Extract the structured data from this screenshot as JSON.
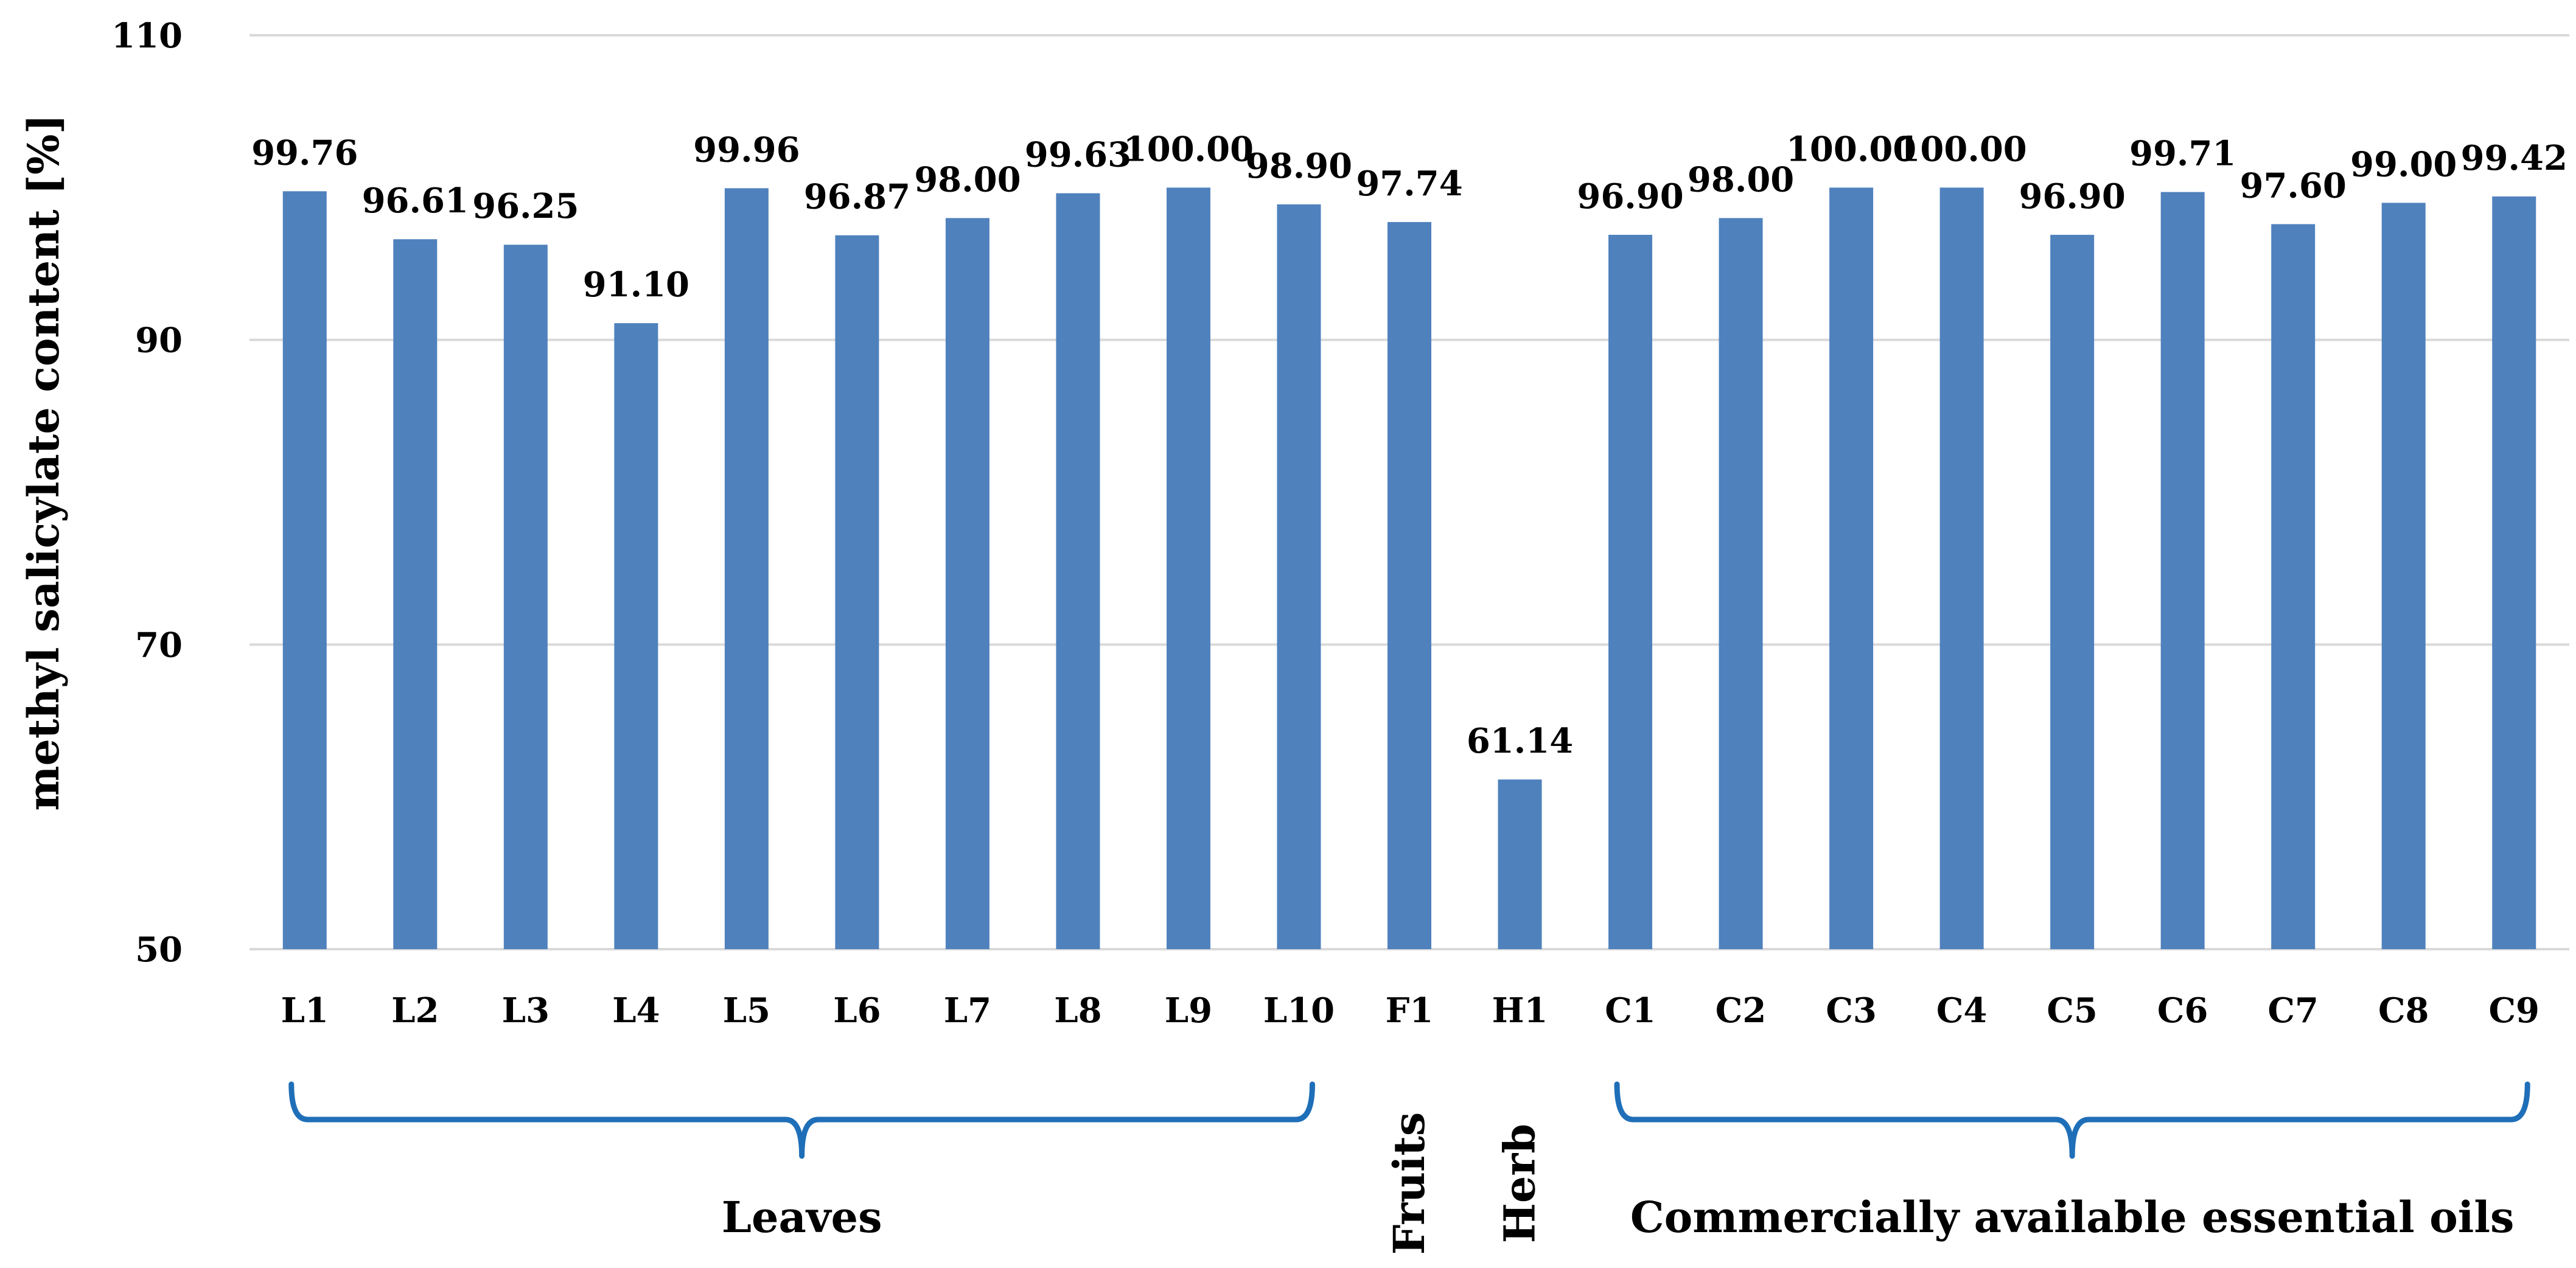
{
  "chart_data": {
    "type": "bar",
    "title": "",
    "xlabel": "",
    "ylabel": "methyl salicylate content [%]",
    "ylim": [
      50,
      110
    ],
    "yticks": [
      50,
      70,
      90,
      110
    ],
    "grid": true,
    "categories": [
      "L1",
      "L2",
      "L3",
      "L4",
      "L5",
      "L6",
      "L7",
      "L8",
      "L9",
      "L10",
      "F1",
      "H1",
      "C1",
      "C2",
      "C3",
      "C4",
      "C5",
      "C6",
      "C7",
      "C8",
      "C9"
    ],
    "values": [
      99.76,
      96.61,
      96.25,
      91.1,
      99.96,
      96.87,
      98.0,
      99.63,
      100.0,
      98.9,
      97.74,
      61.14,
      96.9,
      98.0,
      100.0,
      100.0,
      96.9,
      99.71,
      97.6,
      99.0,
      99.42
    ],
    "value_labels": [
      "99.76",
      "96.61",
      "96.25",
      "91.10",
      "99.96",
      "96.87",
      "98.00",
      "99.63",
      "100.00",
      "98.90",
      "97.74",
      "61.14",
      "96.90",
      "98.00",
      "100.00",
      "100.00",
      "96.90",
      "99.71",
      "97.60",
      "99.00",
      "99.42"
    ],
    "bar_color": "#4f81bd",
    "grid_color": "#d9d9d9",
    "brace_color": "#1f6fb8",
    "groups": [
      {
        "label": "Leaves",
        "from": 0,
        "to": 9,
        "brace": true,
        "orientation": "horizontal"
      },
      {
        "label": "Fruits",
        "from": 10,
        "to": 10,
        "brace": false,
        "orientation": "vertical"
      },
      {
        "label": "Herb",
        "from": 11,
        "to": 11,
        "brace": false,
        "orientation": "vertical"
      },
      {
        "label": "Commercially available essential oils",
        "from": 12,
        "to": 20,
        "brace": true,
        "orientation": "horizontal"
      }
    ]
  }
}
